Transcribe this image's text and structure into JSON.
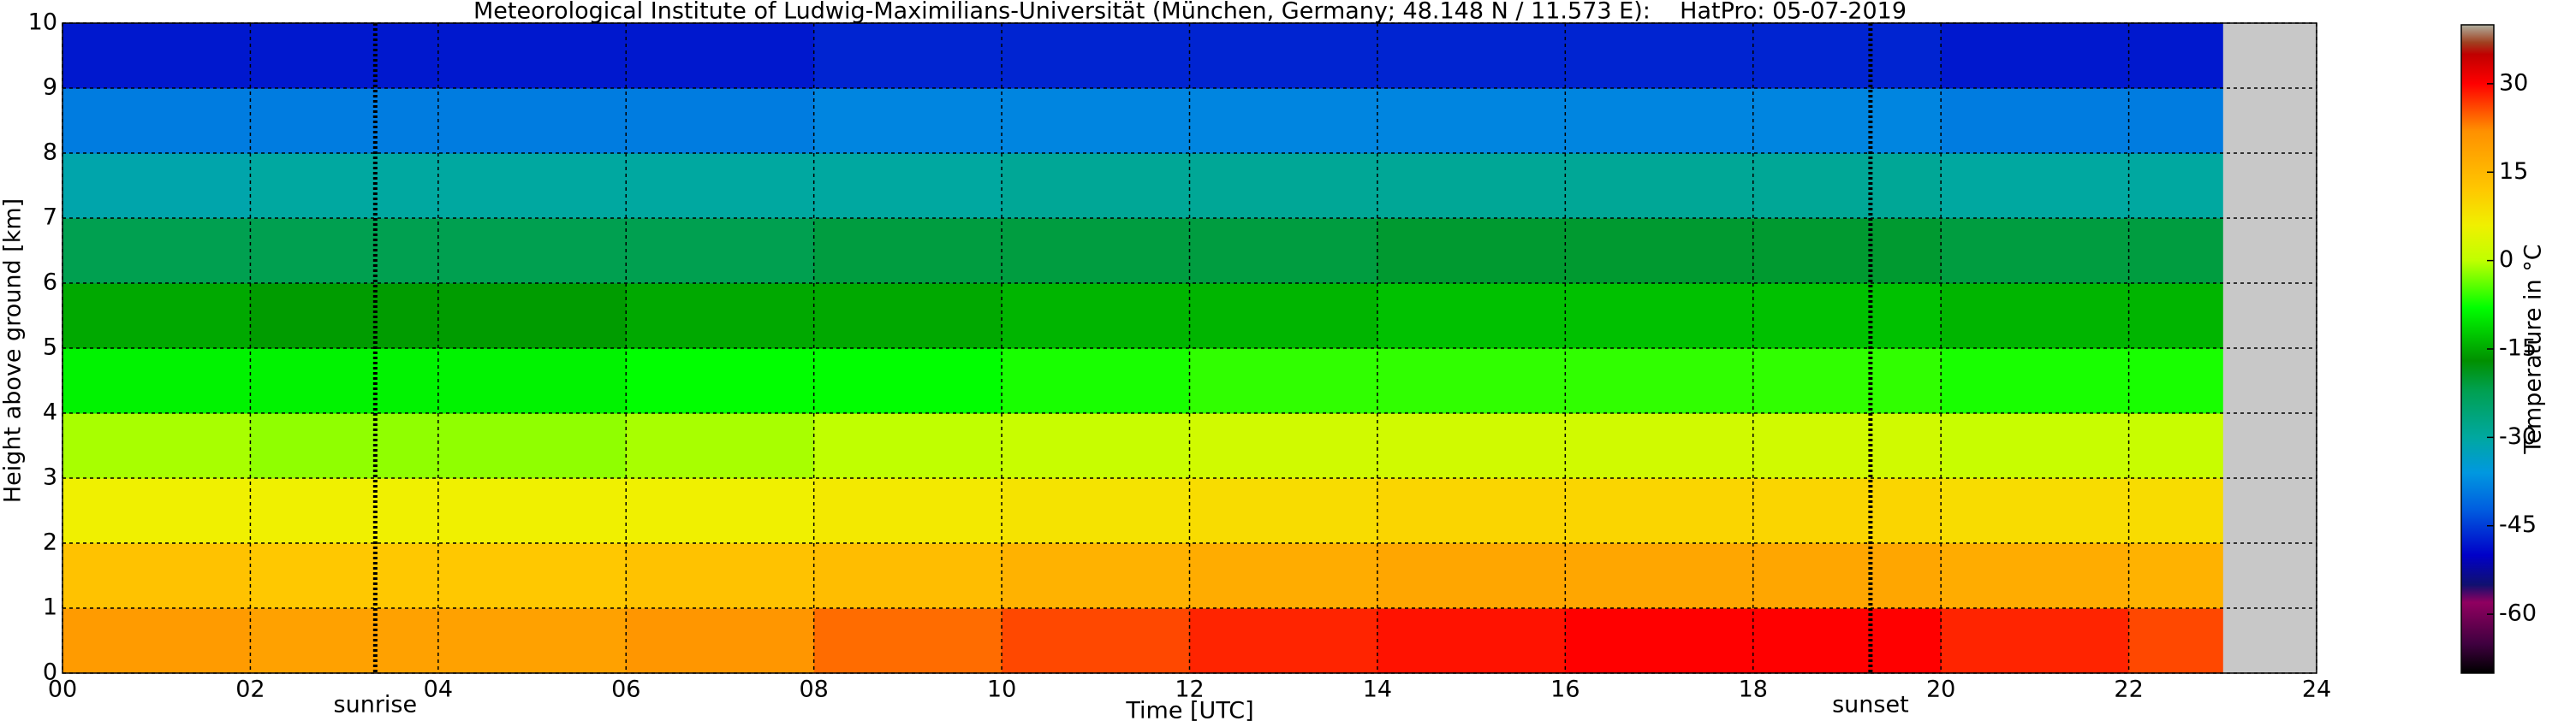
{
  "chart_data": {
    "type": "heatmap",
    "title": "Meteorological Institute of Ludwig-Maximilians-Universität (München, Germany; 48.148 N / 11.573 E):    HatPro: 05-07-2019",
    "x_label": "Time [UTC]",
    "y_label": "Height above ground [km]",
    "colorbar_label": "Temperature in °C",
    "x_edges": [
      0,
      2,
      4,
      6,
      8,
      10,
      12,
      14,
      16,
      18,
      20,
      22,
      23
    ],
    "y_edges": [
      0,
      1,
      2,
      3,
      4,
      5,
      6,
      7,
      8,
      9,
      10
    ],
    "values": [
      [
        20,
        19,
        19,
        21,
        24,
        26,
        28,
        29,
        30,
        30,
        28,
        26
      ],
      [
        13,
        12,
        12,
        13,
        14,
        16,
        17,
        18,
        18,
        18,
        17,
        16
      ],
      [
        6,
        6,
        6,
        6,
        7,
        8,
        9,
        10,
        10,
        10,
        9,
        9
      ],
      [
        -1,
        -2,
        -2,
        -1,
        0,
        1,
        2,
        2,
        2,
        2,
        1,
        1
      ],
      [
        -9,
        -9,
        -9,
        -8,
        -8,
        -7,
        -6,
        -6,
        -6,
        -6,
        -7,
        -7
      ],
      [
        -15,
        -16,
        -16,
        -15,
        -15,
        -14,
        -14,
        -13,
        -13,
        -13,
        -14,
        -14
      ],
      [
        -22,
        -22,
        -22,
        -22,
        -21,
        -21,
        -21,
        -20,
        -20,
        -20,
        -21,
        -21
      ],
      [
        -31,
        -30,
        -30,
        -30,
        -30,
        -29,
        -29,
        -29,
        -29,
        -29,
        -30,
        -30
      ],
      [
        -39,
        -39,
        -39,
        -39,
        -38,
        -38,
        -38,
        -38,
        -38,
        -38,
        -39,
        -39
      ],
      [
        -48,
        -48,
        -48,
        -48,
        -47,
        -47,
        -47,
        -47,
        -47,
        -47,
        -48,
        -48
      ]
    ],
    "xlim": [
      0,
      24
    ],
    "ylim": [
      0,
      10
    ],
    "xticks": [
      {
        "value": 0,
        "label": "00"
      },
      {
        "value": 2,
        "label": "02"
      },
      {
        "value": 4,
        "label": "04"
      },
      {
        "value": 6,
        "label": "06"
      },
      {
        "value": 8,
        "label": "08"
      },
      10,
      12,
      14,
      16,
      18,
      20,
      22,
      24
    ],
    "yticks": [
      0,
      1,
      2,
      3,
      4,
      5,
      6,
      7,
      8,
      9,
      10
    ],
    "zlim": [
      -70,
      40
    ],
    "zticks": [
      30,
      15,
      0,
      -15,
      -30,
      -45,
      -60
    ],
    "colormap": [
      [
        -70,
        "#000000"
      ],
      [
        -65,
        "#400040"
      ],
      [
        -58,
        "#900060"
      ],
      [
        -55,
        "#101070"
      ],
      [
        -50,
        "#0000c8"
      ],
      [
        -42,
        "#0060e0"
      ],
      [
        -36,
        "#0098e0"
      ],
      [
        -30,
        "#00a8a0"
      ],
      [
        -22,
        "#00a050"
      ],
      [
        -17,
        "#009000"
      ],
      [
        -8,
        "#00ff00"
      ],
      [
        0,
        "#c0ff00"
      ],
      [
        6,
        "#f0f000"
      ],
      [
        12,
        "#ffc800"
      ],
      [
        22,
        "#ff9000"
      ],
      [
        30,
        "#ff0000"
      ],
      [
        35,
        "#c00000"
      ],
      [
        37,
        "#a04020"
      ],
      [
        40,
        "#b0b0a0"
      ]
    ],
    "no_data_color": "#c8c8c8",
    "grid": true,
    "annotations": [
      {
        "text": "sunrise",
        "x": 3.33
      },
      {
        "text": "sunset",
        "x": 19.25
      }
    ]
  }
}
